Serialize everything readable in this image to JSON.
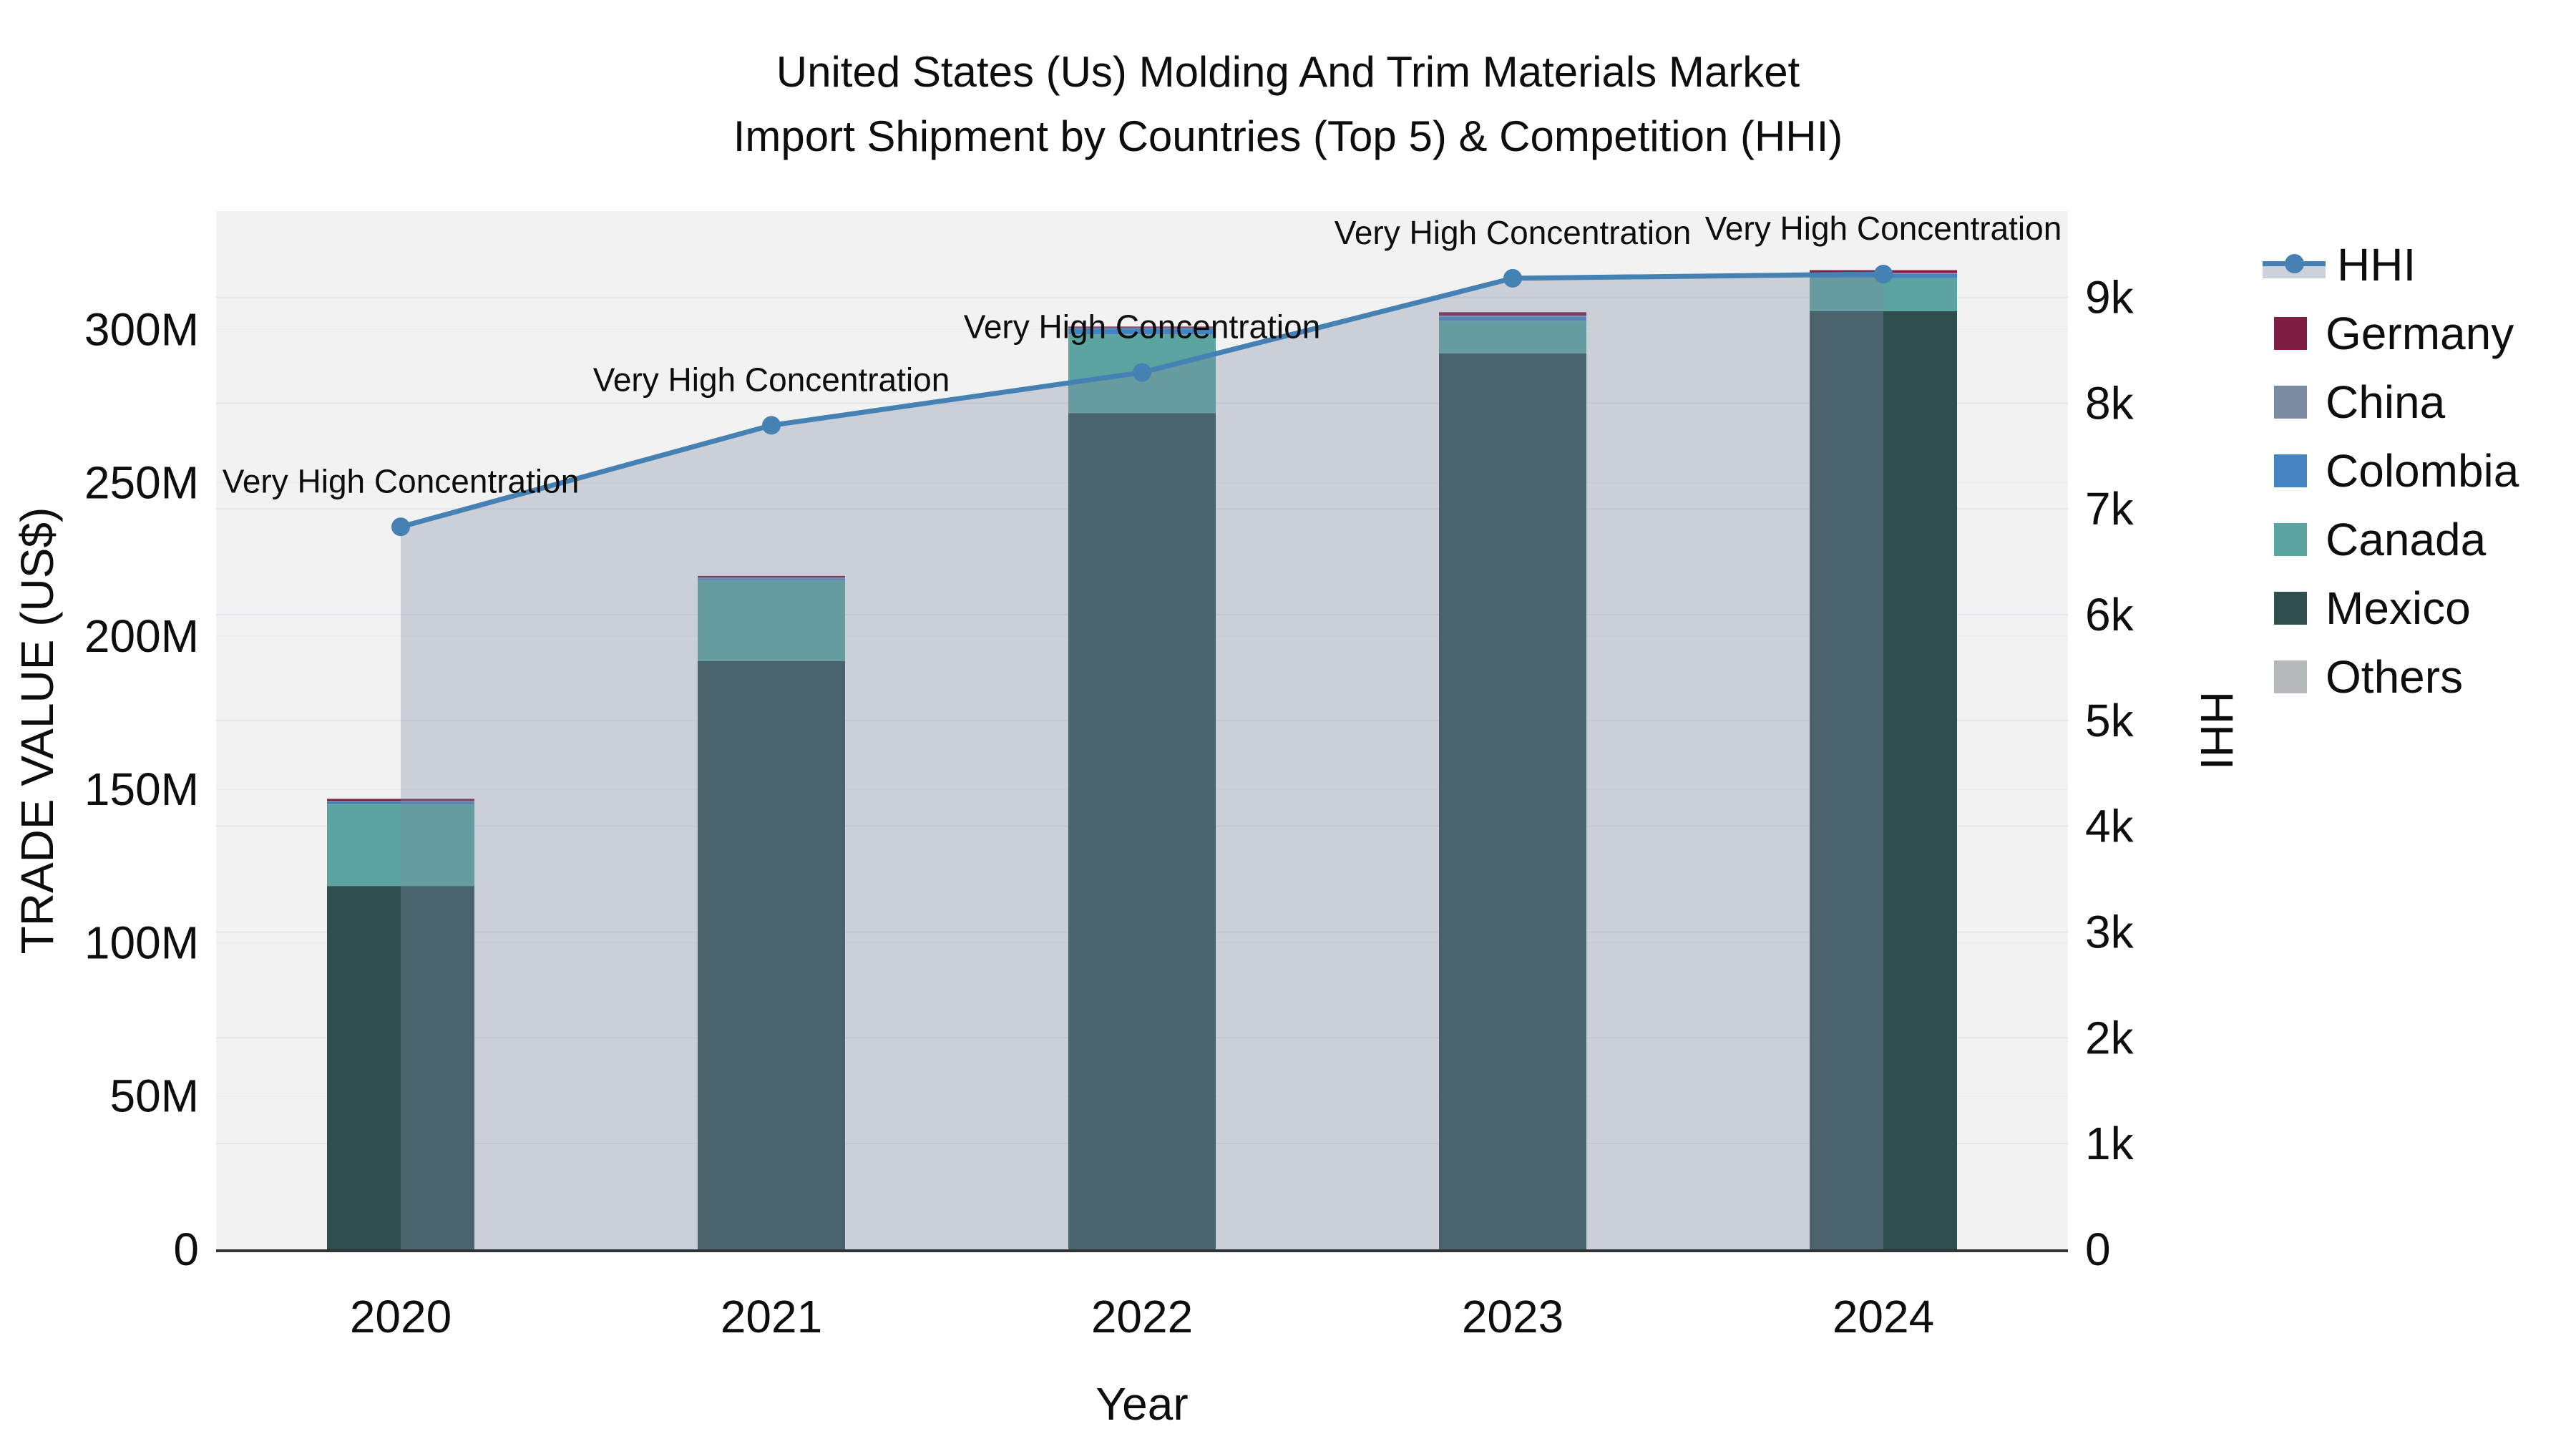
{
  "title": {
    "line1": "United States (Us) Molding And Trim Materials Market",
    "line2": "Import Shipment by Countries (Top 5) & Competition (HHI)"
  },
  "axes": {
    "x_title": "Year",
    "y_left_title": "TRADE VALUE (US$)",
    "y_right_title": "HHI",
    "y_left_tick_labels": [
      "0",
      "50M",
      "100M",
      "150M",
      "200M",
      "250M",
      "300M"
    ],
    "y_left_tick_values": [
      0,
      50,
      100,
      150,
      200,
      250,
      300
    ],
    "y_right_tick_labels": [
      "0",
      "1k",
      "2k",
      "3k",
      "4k",
      "5k",
      "6k",
      "7k",
      "8k",
      "9k"
    ],
    "y_right_tick_values": [
      0,
      1000,
      2000,
      3000,
      4000,
      5000,
      6000,
      7000,
      8000,
      9000
    ]
  },
  "chart_data": {
    "type": "combo-stacked-bar-and-line-dual-axis",
    "categories": [
      "2020",
      "2021",
      "2022",
      "2023",
      "2024"
    ],
    "bar_unit": "M US$",
    "series": [
      {
        "name": "Mexico",
        "color": "#2e4f4e",
        "values": [
          118.5,
          191.8,
          272.7,
          292.2,
          305.9
        ]
      },
      {
        "name": "Canada",
        "color": "#5ca49f",
        "values": [
          26.6,
          26.4,
          25.7,
          10.6,
          10.8
        ]
      },
      {
        "name": "Colombia",
        "color": "#4583c1",
        "values": [
          0.8,
          0.6,
          1.9,
          1.3,
          1.4
        ]
      },
      {
        "name": "China",
        "color": "#7b8ba1",
        "values": [
          0.3,
          0.3,
          0.3,
          0.4,
          0.4
        ]
      },
      {
        "name": "Germany",
        "color": "#7d1e42",
        "values": [
          0.7,
          0.5,
          0.3,
          1.1,
          0.8
        ]
      },
      {
        "name": "Others",
        "color": "#b6b9b9",
        "values": [
          0,
          0,
          0,
          0,
          0
        ]
      }
    ],
    "line_series": {
      "name": "HHI",
      "color": "#4681b4",
      "area_fill_rgb": "127,142,167",
      "area_fill_opacity": 0.34,
      "values": [
        6830,
        7790,
        8290,
        9180,
        9220
      ]
    },
    "annotations": [
      "Very High Concentration",
      "Very High Concentration",
      "Very High Concentration",
      "Very High Concentration",
      "Very High Concentration"
    ],
    "y_left_range_m": [
      0,
      338
    ],
    "y_right_range": [
      0,
      9800
    ],
    "grid": true,
    "legend_position": "right"
  },
  "legend": {
    "items": [
      {
        "label": "HHI",
        "type": "line",
        "color": "#4681b4",
        "band_color": "#ccd2dc"
      },
      {
        "label": "Germany",
        "type": "square",
        "color": "#7d1e42"
      },
      {
        "label": "China",
        "type": "square",
        "color": "#7b8ba1"
      },
      {
        "label": "Colombia",
        "type": "square",
        "color": "#4583c1"
      },
      {
        "label": "Canada",
        "type": "square",
        "color": "#5ca49f"
      },
      {
        "label": "Mexico",
        "type": "square",
        "color": "#2e4f4e"
      },
      {
        "label": "Others",
        "type": "square",
        "color": "#b6b9b9"
      }
    ]
  },
  "colors": {
    "plot_background": "#f2f2f2",
    "grid_minor": "#ececec",
    "grid_major": "#e2e5e9",
    "axis_line": "#333333",
    "text": "#0d0d0d"
  }
}
